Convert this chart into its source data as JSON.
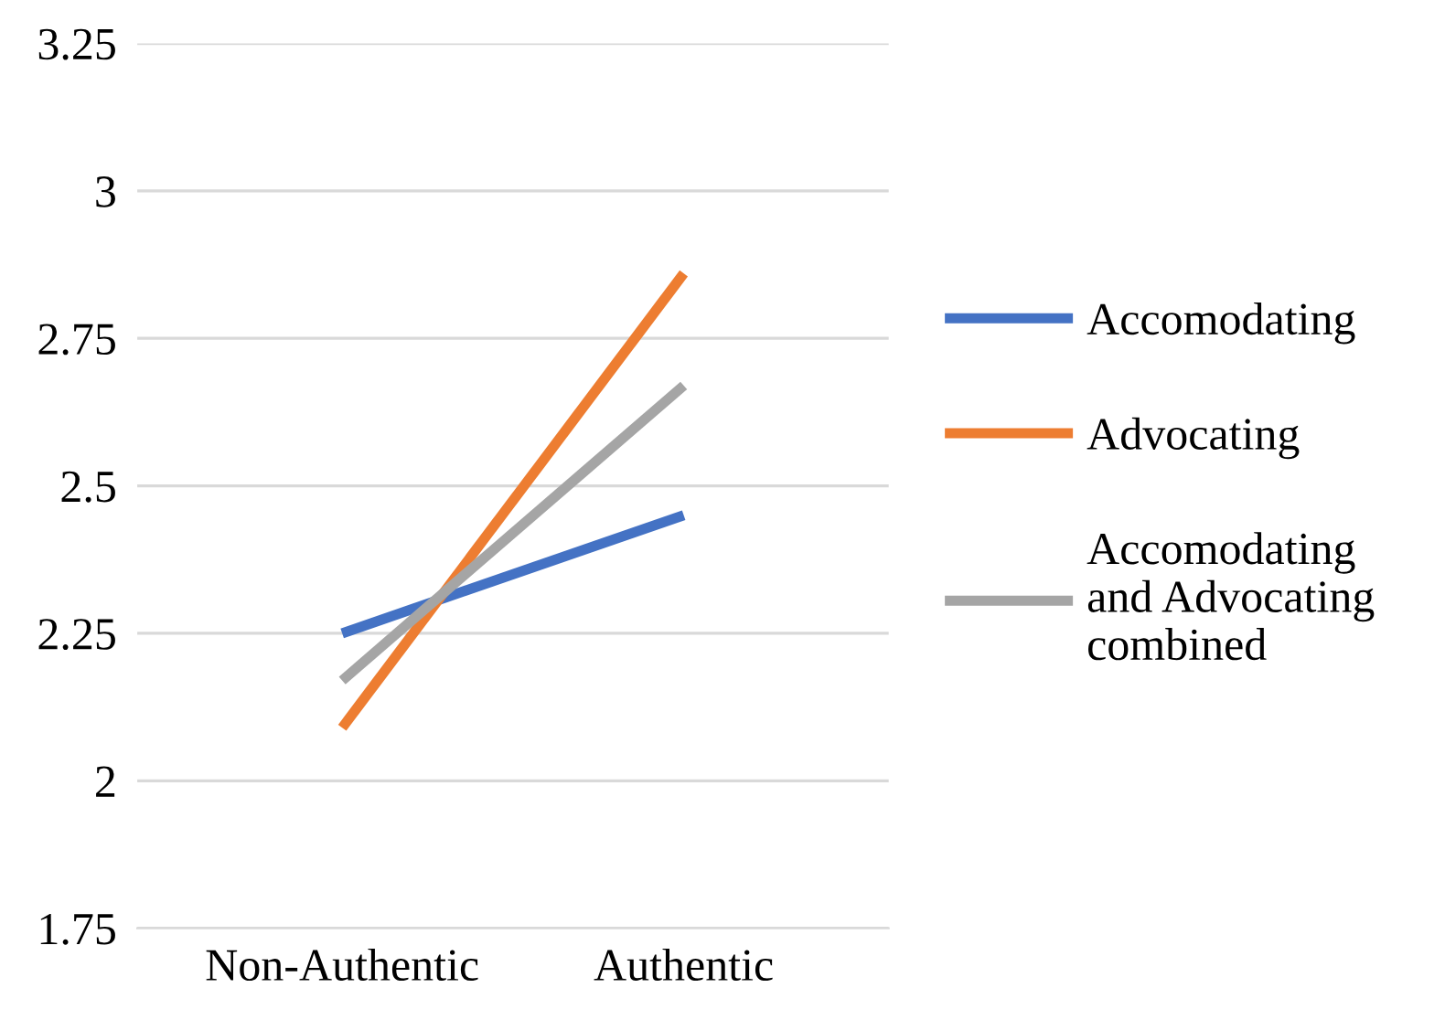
{
  "chart_data": {
    "type": "line",
    "categories": [
      "Non-Authentic",
      "Authentic"
    ],
    "series": [
      {
        "name": "Accomodating",
        "color": "#4472c4",
        "values": [
          2.25,
          2.45
        ]
      },
      {
        "name": "Advocating",
        "color": "#ed7d31",
        "values": [
          2.09,
          2.86
        ]
      },
      {
        "name": "Accomodating and Advocating combined",
        "color": "#a5a5a5",
        "values": [
          2.17,
          2.67
        ]
      }
    ],
    "ylim": [
      1.75,
      3.25
    ],
    "yticks": [
      1.75,
      2,
      2.25,
      2.5,
      2.75,
      3,
      3.25
    ],
    "grid": "y",
    "legend": "right",
    "marker": "none",
    "line_style": "solid"
  }
}
